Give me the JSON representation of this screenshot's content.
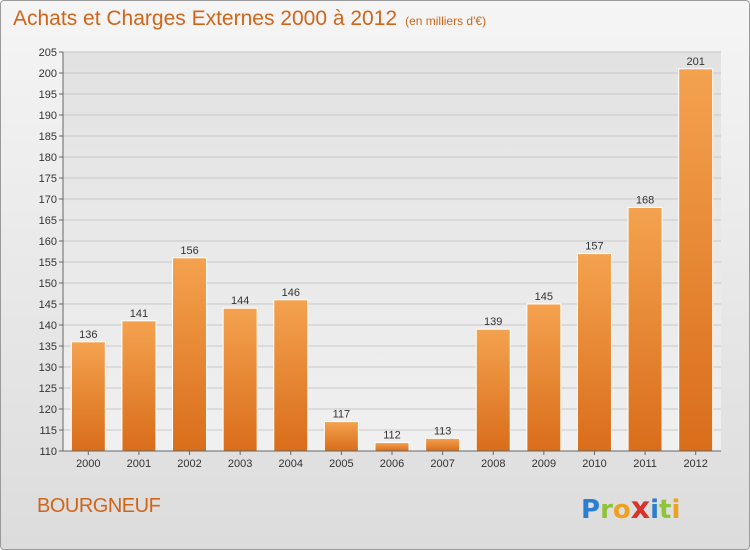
{
  "chart_data": {
    "type": "bar",
    "title": "Achats et Charges Externes 2000 à 2012",
    "subtitle": "(en milliers d'€)",
    "categories": [
      "2000",
      "2001",
      "2002",
      "2003",
      "2004",
      "2005",
      "2006",
      "2007",
      "2008",
      "2009",
      "2010",
      "2011",
      "2012"
    ],
    "values": [
      136,
      141,
      156,
      144,
      146,
      117,
      112,
      113,
      139,
      145,
      157,
      168,
      201
    ],
    "ylim": [
      110,
      205
    ],
    "yticks": [
      110,
      115,
      120,
      125,
      130,
      135,
      140,
      145,
      150,
      155,
      160,
      165,
      170,
      175,
      180,
      185,
      190,
      195,
      200,
      205
    ],
    "grid": true,
    "bar_color": "#e8822f"
  },
  "footer": {
    "commune": "BOURGNEUF",
    "logo_letters": [
      {
        "char": "P",
        "color": "#2a7fd0"
      },
      {
        "char": "r",
        "color": "#8fc43a"
      },
      {
        "char": "o",
        "color": "#f0a020"
      },
      {
        "char": "x",
        "color": "#d9342b"
      },
      {
        "char": "i",
        "color": "#2a7fd0"
      },
      {
        "char": "t",
        "color": "#8fc43a"
      },
      {
        "char": "i",
        "color": "#f0a020"
      }
    ]
  }
}
